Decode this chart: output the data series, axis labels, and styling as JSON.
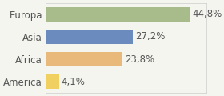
{
  "categories": [
    "Europa",
    "Asia",
    "Africa",
    "America"
  ],
  "values": [
    44.8,
    27.2,
    23.8,
    4.1
  ],
  "labels": [
    "44,8%",
    "27,2%",
    "23,8%",
    "4,1%"
  ],
  "bar_colors": [
    "#a8bb8a",
    "#6b8bbf",
    "#e8b97a",
    "#f0d060"
  ],
  "background_color": "#f5f5f0",
  "text_color": "#555555",
  "xlim": [
    0,
    50
  ],
  "bar_height": 0.62,
  "label_fontsize": 8.5,
  "tick_fontsize": 8.5
}
